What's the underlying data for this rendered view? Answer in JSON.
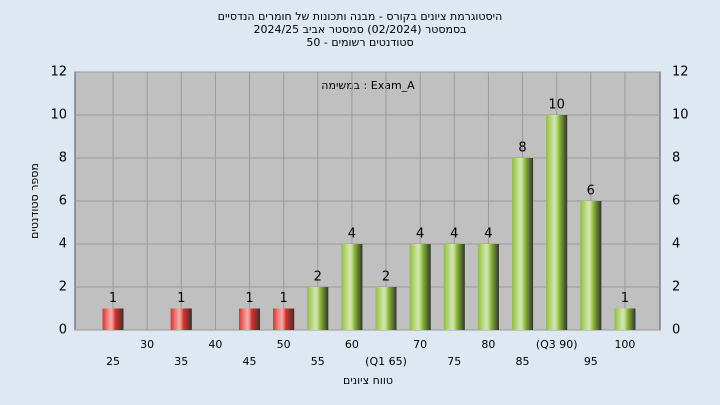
{
  "chart_data": {
    "type": "bar",
    "title": "היסטוגרמת ציונים בקורס - מבנה ותכונות של חומרים הנדסיים",
    "subtitle": "בסמסטר  (02/2024)  סמסטר אביב  2024/25",
    "subtitle2": "סטודנטים רשומים - 50",
    "annotation": "במשימה : Exam_A",
    "x_label": "טווח ציונים",
    "y_label": "מספר סטודנטים",
    "categories": [
      "25",
      "30",
      "35",
      "40",
      "45",
      "50",
      "55",
      "60",
      "(Q1 65)",
      "70",
      "75",
      "80",
      "85",
      "(Q3 90)",
      "95",
      "100"
    ],
    "values": [
      1,
      0,
      1,
      0,
      1,
      1,
      2,
      4,
      2,
      4,
      4,
      4,
      8,
      10,
      6,
      1
    ],
    "colors": [
      "#e0302a",
      "#e0302a",
      "#e0302a",
      "#e0302a",
      "#e0302a",
      "#e0302a",
      "#8fbf3a",
      "#8fbf3a",
      "#8fbf3a",
      "#8fbf3a",
      "#8fbf3a",
      "#8fbf3a",
      "#8fbf3a",
      "#8fbf3a",
      "#8fbf3a",
      "#8fbf3a"
    ],
    "ylim": [
      0,
      12
    ],
    "yticks": [
      0,
      2,
      4,
      6,
      8,
      10,
      12
    ],
    "grid": true
  }
}
